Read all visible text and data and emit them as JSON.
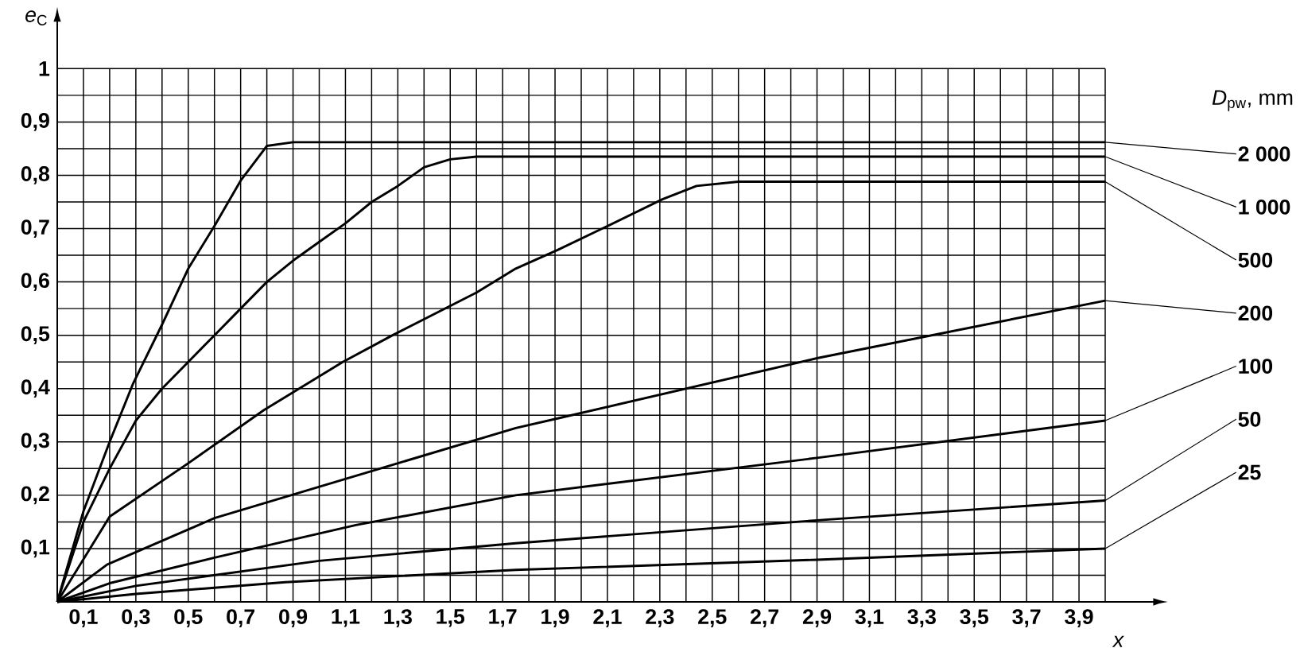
{
  "chart_data": {
    "type": "line",
    "xlabel": "x",
    "ylabel": "*e*$_{C}$",
    "legend_title": "*D*$_{pw}$, mm",
    "grid": true,
    "xlim": [
      0,
      4
    ],
    "ylim": [
      0,
      1
    ],
    "xticks": [
      {
        "value": 0.1,
        "label": "0,1"
      },
      {
        "value": 0.2,
        "label": null
      },
      {
        "value": 0.3,
        "label": "0,3"
      },
      {
        "value": 0.4,
        "label": null
      },
      {
        "value": 0.5,
        "label": "0,5"
      },
      {
        "value": 0.6,
        "label": null
      },
      {
        "value": 0.7,
        "label": "0,7"
      },
      {
        "value": 0.8,
        "label": null
      },
      {
        "value": 0.9,
        "label": "0,9"
      },
      {
        "value": 1.0,
        "label": null
      },
      {
        "value": 1.1,
        "label": "1,1"
      },
      {
        "value": 1.2,
        "label": null
      },
      {
        "value": 1.3,
        "label": "1,3"
      },
      {
        "value": 1.4,
        "label": null
      },
      {
        "value": 1.5,
        "label": "1,5"
      },
      {
        "value": 1.6,
        "label": null
      },
      {
        "value": 1.7,
        "label": "1,7"
      },
      {
        "value": 1.8,
        "label": null
      },
      {
        "value": 1.9,
        "label": "1,9"
      },
      {
        "value": 2.0,
        "label": null
      },
      {
        "value": 2.1,
        "label": "2,1"
      },
      {
        "value": 2.2,
        "label": null
      },
      {
        "value": 2.3,
        "label": "2,3"
      },
      {
        "value": 2.4,
        "label": null
      },
      {
        "value": 2.5,
        "label": "2,5"
      },
      {
        "value": 2.6,
        "label": null
      },
      {
        "value": 2.7,
        "label": "2,7"
      },
      {
        "value": 2.8,
        "label": null
      },
      {
        "value": 2.9,
        "label": "2,9"
      },
      {
        "value": 3.0,
        "label": null
      },
      {
        "value": 3.1,
        "label": "3,1"
      },
      {
        "value": 3.2,
        "label": null
      },
      {
        "value": 3.3,
        "label": "3,3"
      },
      {
        "value": 3.4,
        "label": null
      },
      {
        "value": 3.5,
        "label": "3,5"
      },
      {
        "value": 3.6,
        "label": null
      },
      {
        "value": 3.7,
        "label": "3,7"
      },
      {
        "value": 3.8,
        "label": null
      },
      {
        "value": 3.9,
        "label": "3,9"
      },
      {
        "value": 4.0,
        "label": null
      }
    ],
    "yticks": [
      {
        "value": 0.05,
        "label": null
      },
      {
        "value": 0.1,
        "label": "0,1"
      },
      {
        "value": 0.15,
        "label": null
      },
      {
        "value": 0.2,
        "label": "0,2"
      },
      {
        "value": 0.25,
        "label": null
      },
      {
        "value": 0.3,
        "label": "0,3"
      },
      {
        "value": 0.35,
        "label": null
      },
      {
        "value": 0.4,
        "label": "0,4"
      },
      {
        "value": 0.45,
        "label": null
      },
      {
        "value": 0.5,
        "label": "0,5"
      },
      {
        "value": 0.55,
        "label": null
      },
      {
        "value": 0.6,
        "label": "0,6"
      },
      {
        "value": 0.65,
        "label": null
      },
      {
        "value": 0.7,
        "label": "0,7"
      },
      {
        "value": 0.75,
        "label": null
      },
      {
        "value": 0.8,
        "label": "0,8"
      },
      {
        "value": 0.85,
        "label": null
      },
      {
        "value": 0.9,
        "label": "0,9"
      },
      {
        "value": 0.95,
        "label": null
      },
      1
    ],
    "series": [
      {
        "name": "2 000",
        "color": "#000000",
        "x": [
          0,
          0.1,
          0.2,
          0.29,
          0.4,
          0.5,
          0.6,
          0.7,
          0.8,
          0.9,
          4.0
        ],
        "values": [
          0,
          0.17,
          0.3,
          0.41,
          0.52,
          0.625,
          0.705,
          0.79,
          0.855,
          0.862,
          0.862
        ]
      },
      {
        "name": "1 000",
        "color": "#000000",
        "x": [
          0,
          0.1,
          0.2,
          0.3,
          0.4,
          0.5,
          0.6,
          0.7,
          0.8,
          0.9,
          1.0,
          1.1,
          1.2,
          1.3,
          1.4,
          1.5,
          1.6,
          4.0
        ],
        "values": [
          0,
          0.15,
          0.25,
          0.34,
          0.4,
          0.45,
          0.5,
          0.55,
          0.6,
          0.64,
          0.675,
          0.71,
          0.75,
          0.78,
          0.815,
          0.83,
          0.835,
          0.835
        ]
      },
      {
        "name": "500",
        "color": "#000000",
        "x": [
          0,
          0.2,
          0.5,
          0.79,
          1.09,
          1.28,
          1.6,
          1.75,
          1.91,
          2.08,
          2.31,
          2.44,
          2.6,
          4.0
        ],
        "values": [
          0,
          0.16,
          0.26,
          0.36,
          0.45,
          0.5,
          0.58,
          0.625,
          0.66,
          0.7,
          0.755,
          0.78,
          0.788,
          0.788
        ]
      },
      {
        "name": "200",
        "color": "#000000",
        "x": [
          0,
          0.19,
          0.6,
          1.28,
          1.75,
          1.91,
          2.9,
          4.0
        ],
        "values": [
          0,
          0.07,
          0.157,
          0.257,
          0.326,
          0.344,
          0.457,
          0.565
        ]
      },
      {
        "name": "100",
        "color": "#000000",
        "x": [
          0,
          0.2,
          0.6,
          1.14,
          1.75,
          2.9,
          4.0
        ],
        "values": [
          0,
          0.035,
          0.083,
          0.144,
          0.2,
          0.27,
          0.34
        ]
      },
      {
        "name": "50",
        "color": "#000000",
        "x": [
          0,
          0.3,
          1.0,
          1.75,
          2.9,
          4.0
        ],
        "values": [
          0,
          0.03,
          0.077,
          0.11,
          0.153,
          0.19
        ]
      },
      {
        "name": "25",
        "color": "#000000",
        "x": [
          0,
          0.3,
          0.87,
          1.75,
          2.9,
          4.0
        ],
        "values": [
          0,
          0.015,
          0.037,
          0.06,
          0.079,
          0.1
        ]
      }
    ]
  }
}
